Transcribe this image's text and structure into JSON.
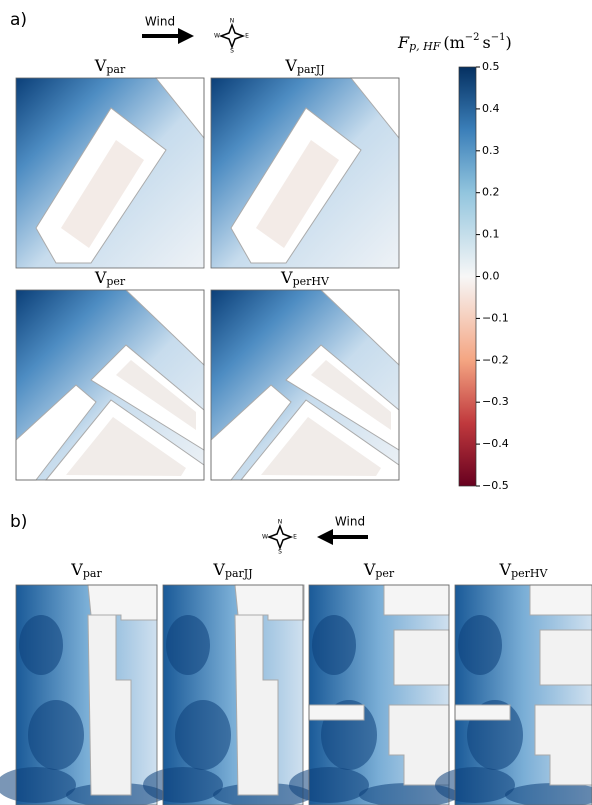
{
  "panel_a": {
    "label": "a)",
    "wind": "Wind",
    "compass": [
      "N",
      "E",
      "S",
      "W"
    ],
    "titles": [
      {
        "main": "V",
        "sub": "par"
      },
      {
        "main": "V",
        "sub": "parJJ"
      },
      {
        "main": "V",
        "sub": "per"
      },
      {
        "main": "V",
        "sub": "perHV"
      }
    ]
  },
  "panel_b": {
    "label": "b)",
    "wind": "Wind",
    "compass": [
      "N",
      "E",
      "S",
      "W"
    ],
    "titles": [
      {
        "main": "V",
        "sub": "par"
      },
      {
        "main": "V",
        "sub": "parJJ"
      },
      {
        "main": "V",
        "sub": "per"
      },
      {
        "main": "V",
        "sub": "perHV"
      }
    ]
  },
  "colorbar": {
    "symbol": "F",
    "subscript": "p, HF",
    "unit": "(m",
    "unit_exp": "−2",
    "unit2": "s",
    "unit2_exp": "−1",
    "close": ")",
    "lim": [
      -0.5,
      0.5
    ],
    "ticks": [
      {
        "value": -0.5,
        "label": "−0.5"
      },
      {
        "value": -0.4,
        "label": "−0.4"
      },
      {
        "value": -0.3,
        "label": "−0.3"
      },
      {
        "value": -0.2,
        "label": "−0.2"
      },
      {
        "value": -0.1,
        "label": "−0.1"
      },
      {
        "value": 0.0,
        "label": "0.0"
      },
      0.1,
      0.2,
      0.3,
      0.4,
      0.5
    ]
  }
}
